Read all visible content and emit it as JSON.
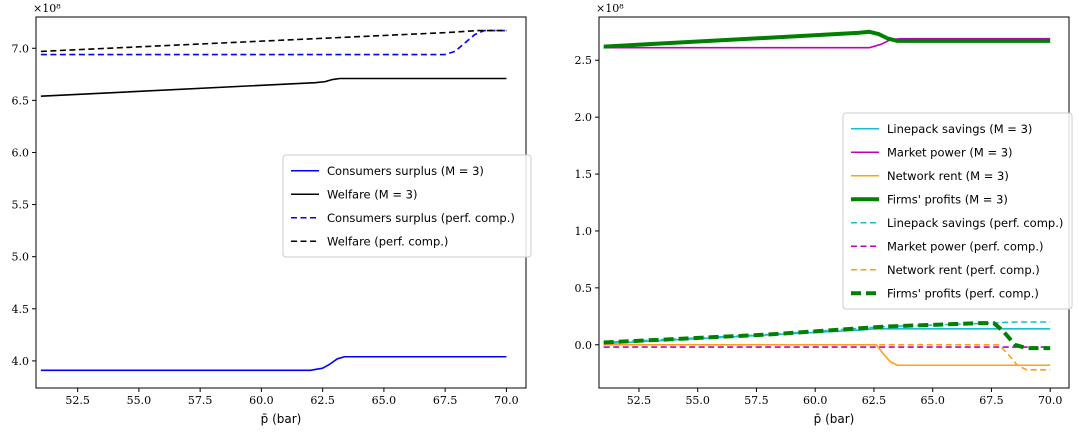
{
  "chart_data": [
    {
      "type": "line",
      "xlabel": "p̄ (bar)",
      "offset_label": "×10⁸",
      "xlim": [
        50.8,
        70.8
      ],
      "ylim": [
        3.74,
        7.3
      ],
      "x_ticks": [
        52.5,
        55.0,
        57.5,
        60.0,
        62.5,
        65.0,
        67.5,
        70.0
      ],
      "x_tick_labels": [
        "52.5",
        "55.0",
        "57.5",
        "60.0",
        "62.5",
        "65.0",
        "67.5",
        "70.0"
      ],
      "y_ticks": [
        4.0,
        4.5,
        5.0,
        5.5,
        6.0,
        6.5,
        7.0
      ],
      "y_tick_labels": [
        "4.0",
        "4.5",
        "5.0",
        "5.5",
        "6.0",
        "6.5",
        "7.0"
      ],
      "legend_position": "center-right",
      "series": [
        {
          "name": "Consumers surplus (M = 3)",
          "color": "#0000ff",
          "dash": "solid",
          "width": 1.6,
          "x": [
            51.0,
            62.0,
            62.5,
            62.8,
            63.1,
            63.4,
            70.0
          ],
          "y": [
            3.91,
            3.91,
            3.93,
            3.97,
            4.02,
            4.04,
            4.04
          ]
        },
        {
          "name": "Welfare (M = 3)",
          "color": "#000000",
          "dash": "solid",
          "width": 1.6,
          "x": [
            51.0,
            62.2,
            62.6,
            62.9,
            63.2,
            63.5,
            70.0
          ],
          "y": [
            6.54,
            6.67,
            6.68,
            6.7,
            6.71,
            6.71,
            6.71
          ]
        },
        {
          "name": "Consumers surplus (perf. comp.)",
          "color": "#0000ff",
          "dash": "dashed",
          "width": 1.6,
          "x": [
            51.0,
            67.5,
            67.9,
            68.3,
            68.7,
            69.1,
            70.0
          ],
          "y": [
            6.94,
            6.94,
            6.97,
            7.05,
            7.13,
            7.17,
            7.17
          ]
        },
        {
          "name": "Welfare (perf. comp.)",
          "color": "#000000",
          "dash": "dashed",
          "width": 1.6,
          "x": [
            51.0,
            67.5,
            68.2,
            68.8,
            70.0
          ],
          "y": [
            6.97,
            7.15,
            7.16,
            7.17,
            7.17
          ]
        }
      ]
    },
    {
      "type": "line",
      "xlabel": "p̄ (bar)",
      "offset_label": "×10⁸",
      "xlim": [
        50.8,
        70.8
      ],
      "ylim": [
        -0.38,
        2.88
      ],
      "x_ticks": [
        52.5,
        55.0,
        57.5,
        60.0,
        62.5,
        65.0,
        67.5,
        70.0
      ],
      "x_tick_labels": [
        "52.5",
        "55.0",
        "57.5",
        "60.0",
        "62.5",
        "65.0",
        "67.5",
        "70.0"
      ],
      "y_ticks": [
        0.0,
        0.5,
        1.0,
        1.5,
        2.0,
        2.5
      ],
      "y_tick_labels": [
        "0.0",
        "0.5",
        "1.0",
        "1.5",
        "2.0",
        "2.5"
      ],
      "legend_position": "center-right",
      "series": [
        {
          "name": "Linepack savings (M = 3)",
          "color": "#17becf",
          "dash": "solid",
          "width": 1.6,
          "x": [
            51.0,
            62.0,
            62.5,
            63.0,
            63.5,
            70.0
          ],
          "y": [
            0.01,
            0.13,
            0.14,
            0.14,
            0.14,
            0.14
          ]
        },
        {
          "name": "Market power (M = 3)",
          "color": "#bf00bf",
          "dash": "solid",
          "width": 1.6,
          "x": [
            51.0,
            62.3,
            62.8,
            63.2,
            63.6,
            70.0
          ],
          "y": [
            2.61,
            2.61,
            2.64,
            2.68,
            2.69,
            2.69
          ]
        },
        {
          "name": "Network rent (M = 3)",
          "color": "#ff9f1a",
          "dash": "solid",
          "width": 1.6,
          "x": [
            51.0,
            62.6,
            62.9,
            63.2,
            63.5,
            70.0
          ],
          "y": [
            0.0,
            0.0,
            -0.08,
            -0.15,
            -0.18,
            -0.18
          ]
        },
        {
          "name": "Firms' profits (M = 3)",
          "color": "#008000",
          "dash": "solid",
          "width": 4.0,
          "x": [
            51.0,
            61.8,
            62.3,
            62.7,
            63.1,
            63.5,
            70.0
          ],
          "y": [
            2.62,
            2.74,
            2.75,
            2.73,
            2.69,
            2.67,
            2.67
          ]
        },
        {
          "name": "Linepack savings (perf. comp.)",
          "color": "#17becf",
          "dash": "dashed",
          "width": 1.6,
          "x": [
            51.0,
            58.0,
            63.0,
            67.5,
            68.5,
            70.0
          ],
          "y": [
            0.02,
            0.09,
            0.16,
            0.19,
            0.2,
            0.2
          ]
        },
        {
          "name": "Market power (perf. comp.)",
          "color": "#bf00bf",
          "dash": "dashed",
          "width": 1.6,
          "x": [
            51.0,
            70.0
          ],
          "y": [
            -0.02,
            -0.02
          ]
        },
        {
          "name": "Network rent (perf. comp.)",
          "color": "#ff9f1a",
          "dash": "dashed",
          "width": 1.6,
          "x": [
            51.0,
            67.8,
            68.2,
            68.6,
            69.0,
            70.0
          ],
          "y": [
            0.0,
            0.0,
            -0.08,
            -0.18,
            -0.22,
            -0.22
          ]
        },
        {
          "name": "Firms' profits (perf. comp.)",
          "color": "#008000",
          "dash": "dashed",
          "width": 4.0,
          "x": [
            51.0,
            58.0,
            63.0,
            67.0,
            67.6,
            68.0,
            68.5,
            69.0,
            70.0
          ],
          "y": [
            0.02,
            0.09,
            0.16,
            0.19,
            0.19,
            0.12,
            0.0,
            -0.03,
            -0.03
          ]
        }
      ]
    }
  ]
}
